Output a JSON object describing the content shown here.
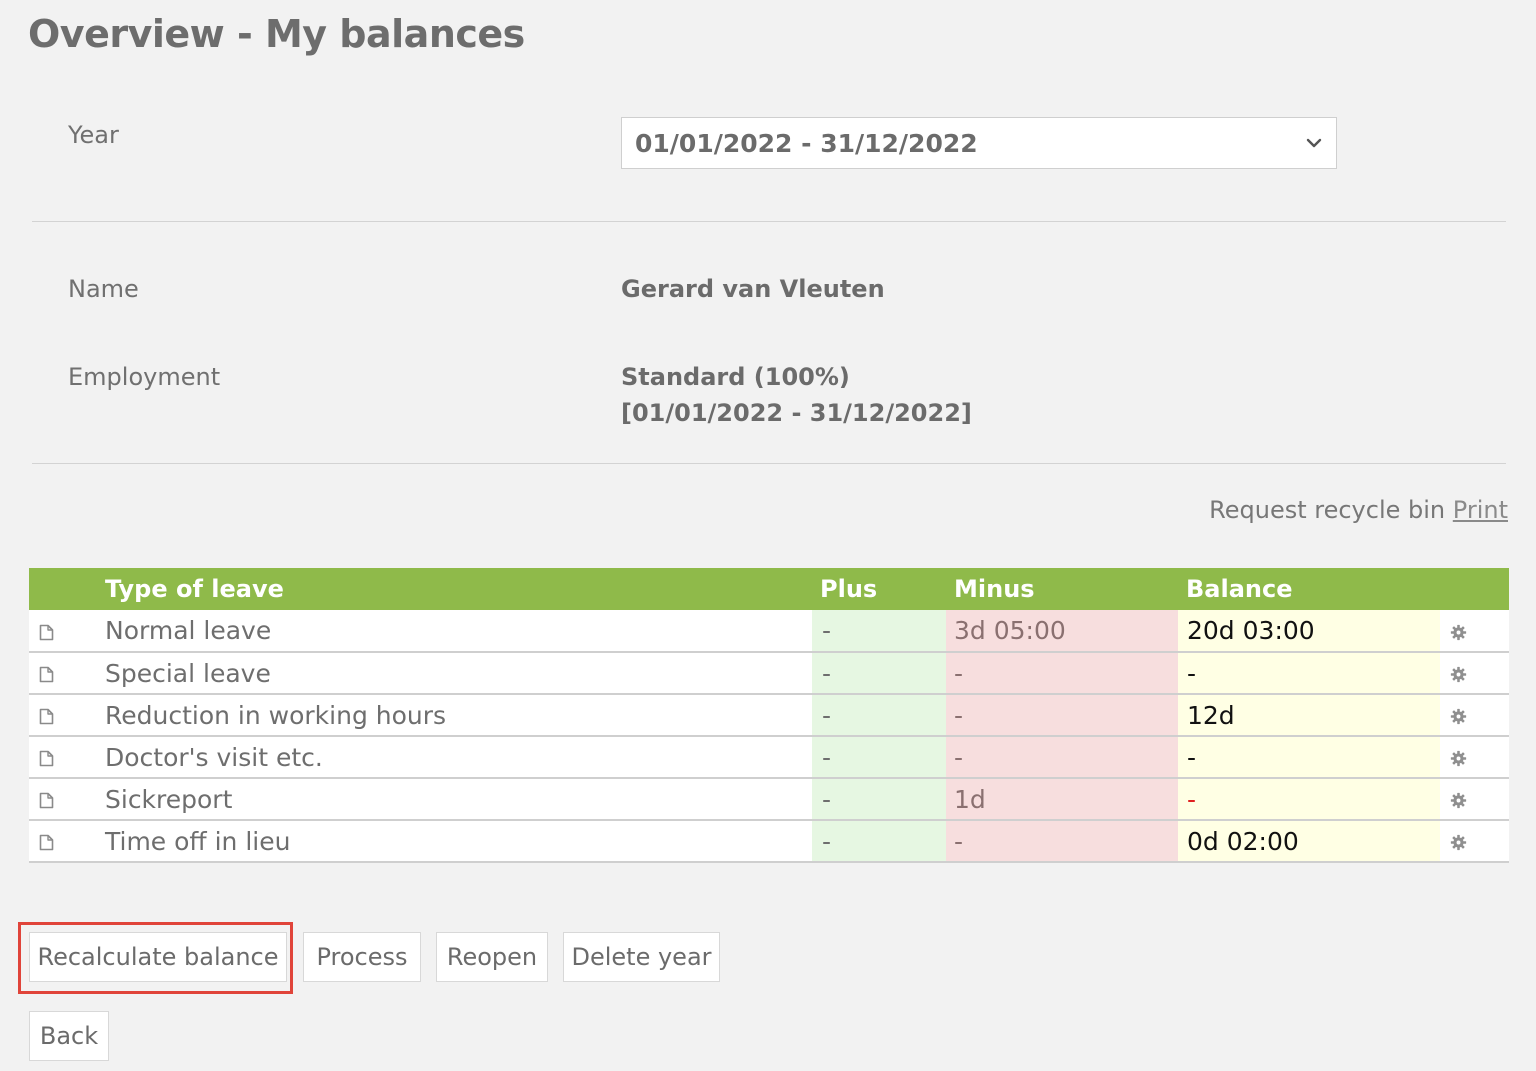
{
  "page": {
    "title": "Overview - My balances"
  },
  "year": {
    "label": "Year",
    "selected": "01/01/2022 - 31/12/2022"
  },
  "details": {
    "name_label": "Name",
    "name_value": "Gerard van Vleuten",
    "employment_label": "Employment",
    "employment_line1": "Standard (100%)",
    "employment_line2": "[01/01/2022 - 31/12/2022]"
  },
  "links": {
    "recycle_bin": "Request recycle bin",
    "print": "Print"
  },
  "table": {
    "headers": {
      "type": "Type of leave",
      "plus": "Plus",
      "minus": "Minus",
      "balance": "Balance"
    },
    "rows": [
      {
        "type": "Normal leave",
        "plus": "-",
        "minus": "3d 05:00",
        "balance": "20d 03:00"
      },
      {
        "type": "Special leave",
        "plus": "-",
        "minus": "-",
        "balance": "-"
      },
      {
        "type": "Reduction in working hours",
        "plus": "-",
        "minus": "-",
        "balance": "12d"
      },
      {
        "type": "Doctor's visit etc.",
        "plus": "-",
        "minus": "-",
        "balance": "-"
      },
      {
        "type": "Sickreport",
        "plus": "-",
        "minus": "1d",
        "balance": "-"
      },
      {
        "type": "Time off in lieu",
        "plus": "-",
        "minus": "-",
        "balance": "0d 02:00"
      }
    ]
  },
  "buttons": {
    "recalculate": "Recalculate balance",
    "process": "Process",
    "reopen": "Reopen",
    "delete_year": "Delete year",
    "back": "Back"
  },
  "icons": {
    "row_icon": "document-icon",
    "row_action": "gear-icon",
    "select": "chevron-down-icon"
  },
  "colors": {
    "header_green": "#8fba4a",
    "plus_bg": "#e6f7e2",
    "minus_bg": "#f7dede",
    "balance_bg": "#ffffe4",
    "negative_red": "#e02020",
    "highlight_red": "#e0443a"
  }
}
